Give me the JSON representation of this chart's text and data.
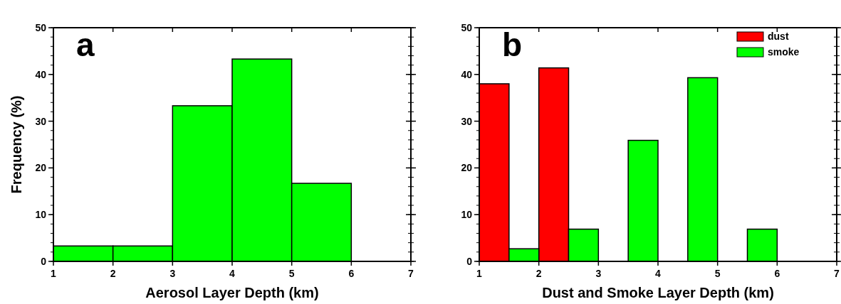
{
  "chart_data": [
    {
      "type": "histogram",
      "bins": [
        1,
        2,
        3,
        4,
        5,
        6
      ],
      "values": [
        3.3,
        3.3,
        33.3,
        43.3,
        16.7
      ],
      "color": "#00ff00",
      "xlabel": "Aerosol Layer Depth (km)",
      "ylabel": "Frequency (%)",
      "annotations": [
        "a"
      ],
      "xlim": [
        1,
        7
      ],
      "ylim": [
        0,
        50
      ],
      "xticks": [
        1,
        2,
        3,
        4,
        5,
        6,
        7
      ],
      "yticks": [
        0,
        10,
        20,
        30,
        40,
        50
      ],
      "legend": false,
      "grid": false
    },
    {
      "type": "histogram",
      "bins": [
        1,
        1.5,
        2,
        2.5,
        3,
        3.5,
        4,
        4.5,
        5,
        5.5,
        6
      ],
      "series": [
        {
          "name": "dust",
          "color": "#ff0000",
          "values": [
            38.0,
            null,
            41.4,
            null,
            null,
            null,
            null,
            null,
            null,
            null
          ]
        },
        {
          "name": "smoke",
          "color": "#00ff00",
          "values": [
            null,
            2.7,
            null,
            6.9,
            null,
            25.9,
            null,
            39.3,
            null,
            6.9
          ]
        }
      ],
      "xlabel": "Dust and Smoke Layer Depth (km)",
      "annotations": [
        "b"
      ],
      "xlim": [
        1,
        7
      ],
      "ylim": [
        0,
        50
      ],
      "xticks": [
        1,
        2,
        3,
        4,
        5,
        6,
        7
      ],
      "yticks": [
        0,
        10,
        20,
        30,
        40,
        50
      ],
      "legend": "top right",
      "grid": false
    }
  ]
}
